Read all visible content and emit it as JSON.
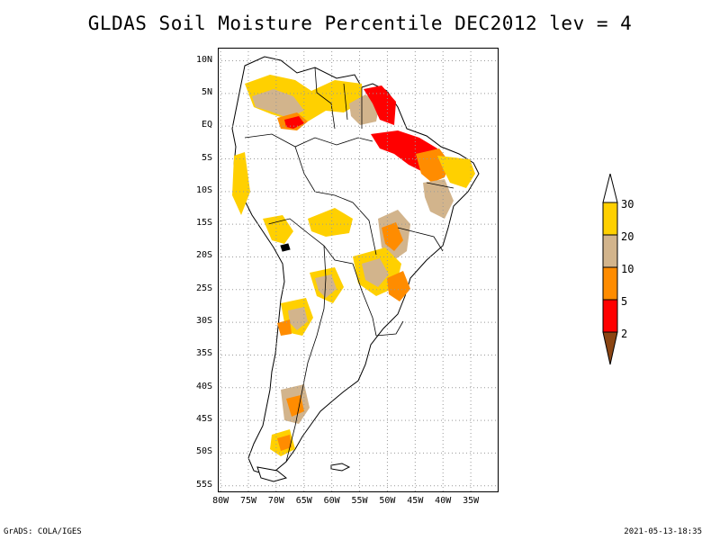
{
  "title": "GLDAS Soil Moisture Percentile DEC2012 lev = 4",
  "lat_labels": [
    "10N",
    "5N",
    "EQ",
    "5S",
    "10S",
    "15S",
    "20S",
    "25S",
    "30S",
    "35S",
    "40S",
    "45S",
    "50S",
    "55S"
  ],
  "lon_labels": [
    "80W",
    "75W",
    "70W",
    "65W",
    "60W",
    "55W",
    "50W",
    "45W",
    "40W",
    "35W"
  ],
  "colorbar": {
    "labels": [
      "30",
      "20",
      "10",
      "5",
      "2"
    ],
    "colors": [
      "#ffd000",
      "#d2b48c",
      "#ff8c00",
      "#ff0000",
      "#8b4513"
    ],
    "top_arrow_color": "#ffffff"
  },
  "credit": "GrADS: COLA/IGES",
  "timestamp": "2021-05-13-18:35",
  "map_extent": {
    "lon": [
      -80.5,
      -30
    ],
    "lat": [
      -56,
      12
    ]
  },
  "colors": {
    "yellow": "#ffd000",
    "tan": "#d2b48c",
    "orange": "#ff8c00",
    "red": "#ff0000",
    "grid": "#999999"
  }
}
